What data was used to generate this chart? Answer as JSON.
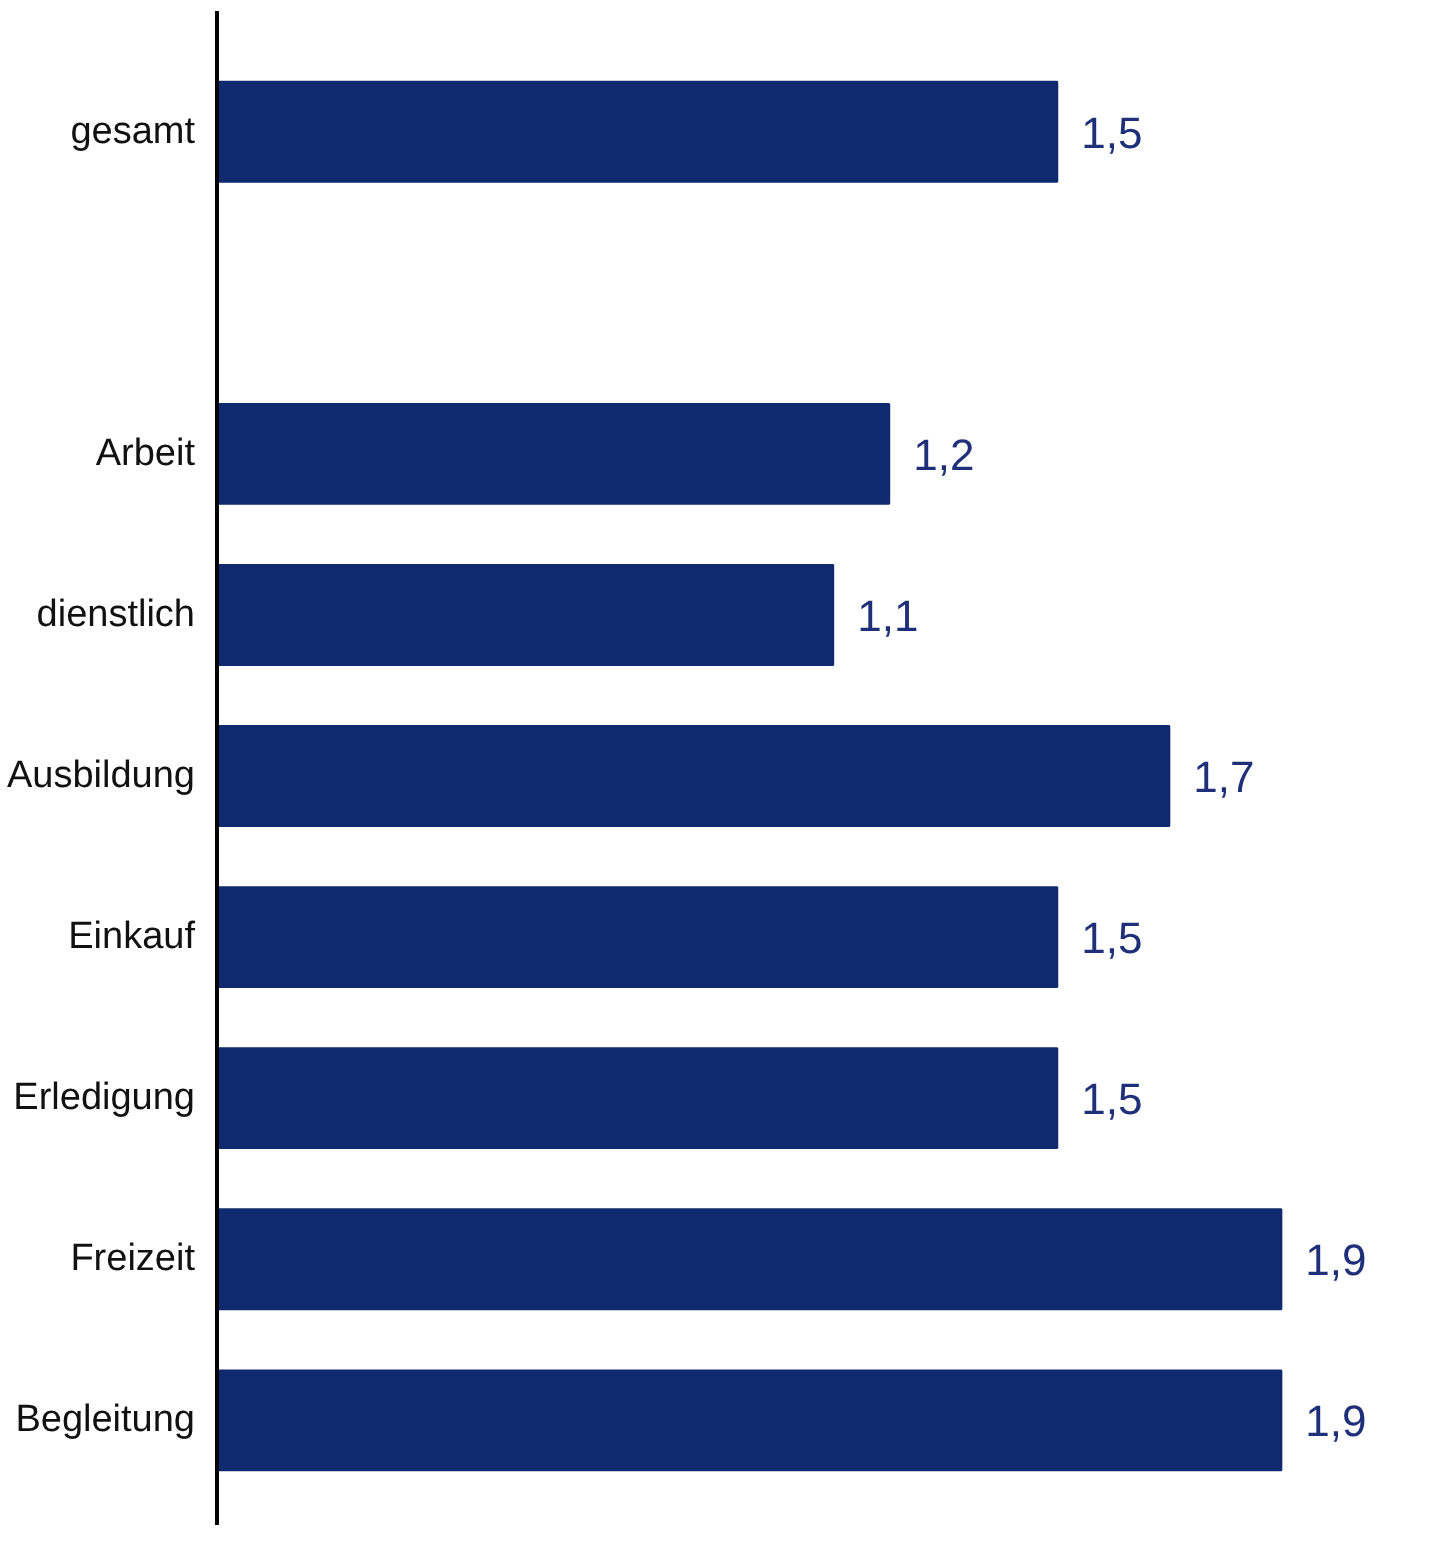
{
  "chart_data": {
    "type": "bar",
    "orientation": "horizontal",
    "categories": [
      "gesamt",
      null,
      "Arbeit",
      "dienstlich",
      "Ausbildung",
      "Einkauf",
      "Erledigung",
      "Freizeit",
      "Begleitung"
    ],
    "values": [
      1.5,
      null,
      1.2,
      1.1,
      1.7,
      1.5,
      1.5,
      1.9,
      1.9
    ],
    "value_labels": [
      "1,5",
      null,
      "1,2",
      "1,1",
      "1,7",
      "1,5",
      "1,5",
      "1,9",
      "1,9"
    ],
    "color": "#0f2a6e",
    "grid": false
  }
}
